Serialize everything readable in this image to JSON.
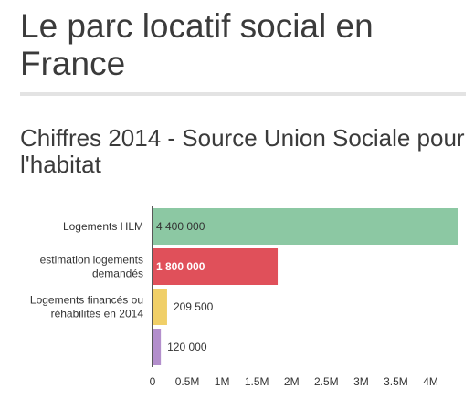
{
  "page": {
    "title": "Le parc locatif social en France",
    "chart_heading": "Chiffres 2014 - Source Union Sociale pour l'habitat"
  },
  "chart_data": {
    "type": "bar",
    "orientation": "horizontal",
    "categories": [
      "Logements HLM",
      "estimation logements demandés",
      "Logements financés ou réhabilités en 2014",
      ""
    ],
    "category_lines": [
      [
        "Logements HLM"
      ],
      [
        "estimation logements",
        "demandés"
      ],
      [
        "Logements financés ou",
        "réhabilités en 2014"
      ],
      []
    ],
    "values": [
      4400000,
      1800000,
      209500,
      120000
    ],
    "value_labels": [
      "4 400 000",
      "1 800 000",
      "209 500",
      "120 000"
    ],
    "colors": [
      "#8cc8a3",
      "#e0505a",
      "#f0cf68",
      "#b38fcc"
    ],
    "xlim": [
      0,
      4400000
    ],
    "ticks": [
      {
        "value": 0,
        "label": "0"
      },
      {
        "value": 500000,
        "label": "0.5M"
      },
      {
        "value": 1000000,
        "label": "1M"
      },
      {
        "value": 1500000,
        "label": "1.5M"
      },
      {
        "value": 2000000,
        "label": "2M"
      },
      {
        "value": 2500000,
        "label": "2.5M"
      },
      {
        "value": 3000000,
        "label": "3M"
      },
      {
        "value": 3500000,
        "label": "3.5M"
      },
      {
        "value": 4000000,
        "label": "4M"
      }
    ],
    "grid": false,
    "legend": "none",
    "xlabel": "",
    "ylabel": ""
  }
}
